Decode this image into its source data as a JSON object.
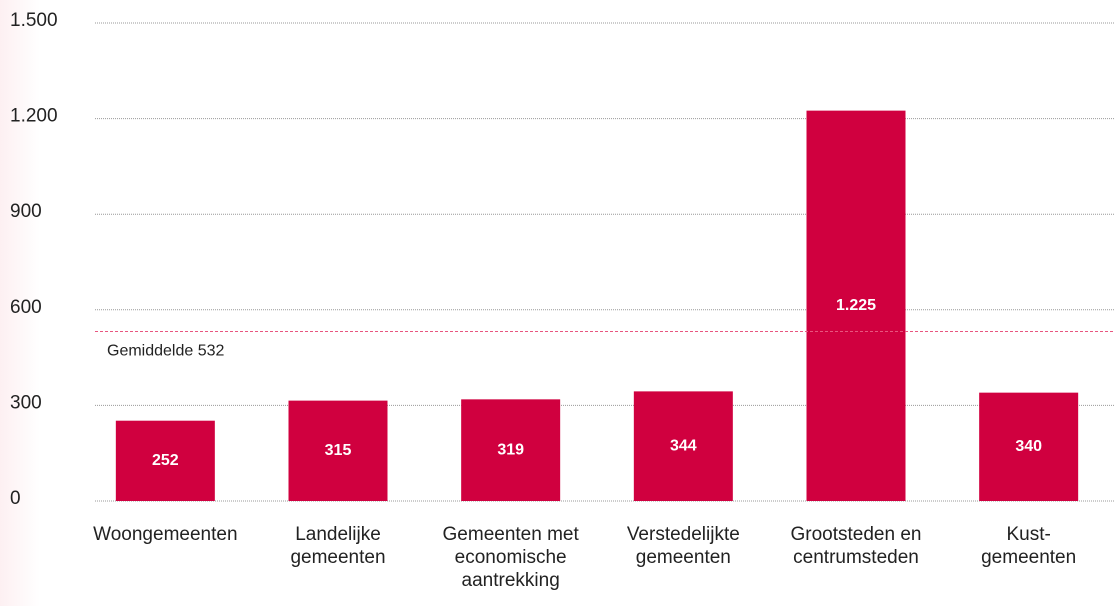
{
  "chart_data": {
    "type": "bar",
    "categories": [
      "Woongemeenten",
      "Landelijke\ngemeenten",
      "Gemeenten met\neconomische\naantrekking",
      "Verstedelijkte\ngemeenten",
      "Grootsteden en\ncentrumsteden",
      "Kust-\ngemeenten"
    ],
    "values": [
      252,
      315,
      319,
      344,
      1225,
      340
    ],
    "value_labels": [
      "252",
      "315",
      "319",
      "344",
      "1.225",
      "340"
    ],
    "color": "#d0003f",
    "ylim": [
      0,
      1500
    ],
    "yticks": [
      0,
      300,
      600,
      900,
      {
        "value": 1200,
        "label": "1.200"
      },
      {
        "value": 1500,
        "label": "1.500"
      }
    ],
    "grid": true,
    "reference_line": {
      "value": 532,
      "label": "Gemiddelde 532",
      "color": "#e8567f"
    }
  }
}
